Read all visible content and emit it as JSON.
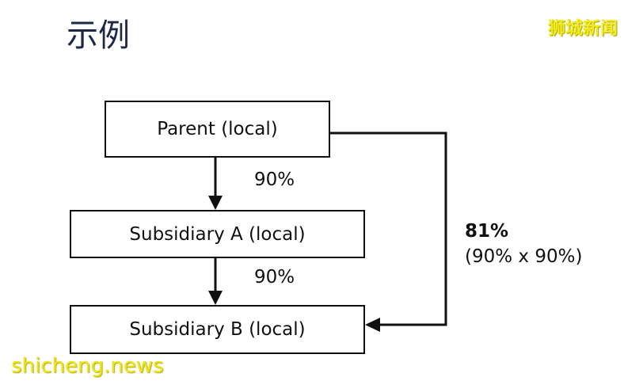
{
  "title": "示例",
  "watermarks": {
    "top_right": "狮城新闻",
    "bottom_left": "shicheng.news"
  },
  "nodes": {
    "parent": "Parent (local)",
    "subsidiary_a": "Subsidiary A (local)",
    "subsidiary_b": "Subsidiary B (local)"
  },
  "edges": {
    "parent_to_a": "90%",
    "a_to_b": "90%",
    "parent_to_b": "81%",
    "parent_to_b_formula": "(90% x 90%)"
  }
}
